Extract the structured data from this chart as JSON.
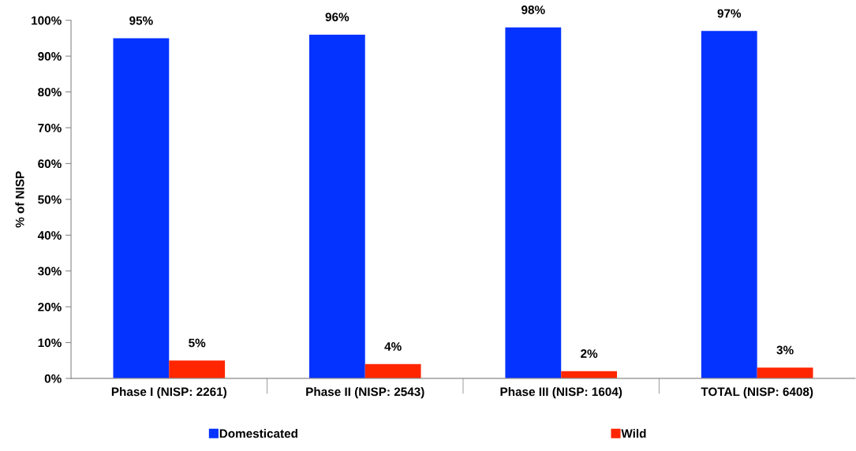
{
  "chart_data": {
    "type": "bar",
    "ylabel": "% of NISP",
    "categories": [
      "Phase I (NISP: 2261)",
      "Phase II (NISP: 2543)",
      "Phase III (NISP: 1604)",
      "TOTAL (NISP: 6408)"
    ],
    "series": [
      {
        "name": "Domesticated",
        "color": "#0433ff",
        "values": [
          95,
          96,
          98,
          97
        ],
        "value_labels": [
          "95%",
          "96%",
          "98%",
          "97%"
        ]
      },
      {
        "name": "Wild",
        "color": "#ff2600",
        "values": [
          5,
          4,
          2,
          3
        ],
        "value_labels": [
          "5%",
          "4%",
          "2%",
          "3%"
        ]
      }
    ],
    "ylim": [
      0,
      100
    ],
    "yticks": [
      {
        "value": 0,
        "label": "0%"
      },
      {
        "value": 10,
        "label": "10%"
      },
      {
        "value": 20,
        "label": "20%"
      },
      {
        "value": 30,
        "label": "30%"
      },
      {
        "value": 40,
        "label": "40%"
      },
      {
        "value": 50,
        "label": "50%"
      },
      {
        "value": 60,
        "label": "60%"
      },
      {
        "value": 70,
        "label": "70%"
      },
      {
        "value": 80,
        "label": "80%"
      },
      {
        "value": 90,
        "label": "90%"
      },
      {
        "value": 100,
        "label": "100%"
      }
    ],
    "grid": false,
    "legend": "bottom"
  }
}
